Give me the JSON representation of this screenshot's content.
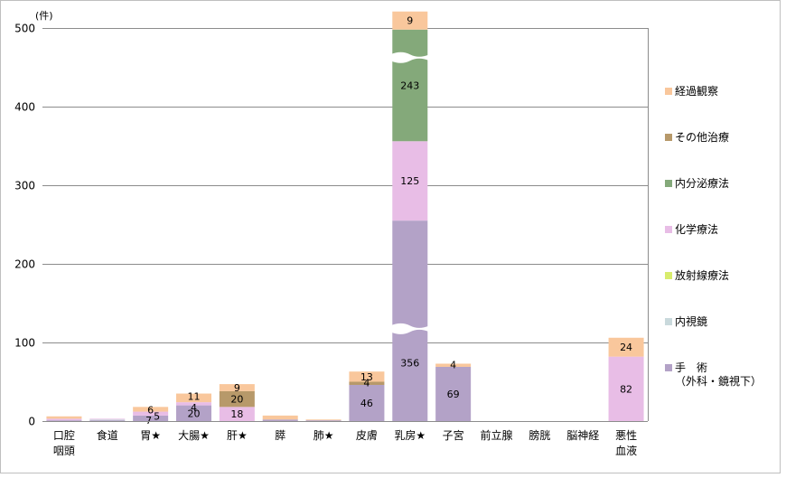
{
  "chart_data": {
    "type": "bar",
    "stacked": true,
    "y_unit_label": "(件)",
    "ylim": [
      0,
      500
    ],
    "y_ticks": [
      0,
      100,
      200,
      300,
      400,
      500
    ],
    "grid": true,
    "legend_position": "right",
    "axis_break": "乳房★ bar has two wavy breaks (inside 手術 and inside 内分泌療法)",
    "categories": [
      "口腔\n咽頭",
      "食道",
      "胃★",
      "大腸★",
      "肝★",
      "膵",
      "肺★",
      "皮膚",
      "乳房★",
      "子宮",
      "前立腺",
      "膀胱",
      "脳神経",
      "悪性\n血液"
    ],
    "series": [
      {
        "name": "手　術\n（外科・鏡視下）",
        "color": "#b3a2c7",
        "values": [
          1,
          1,
          7,
          20,
          0,
          2,
          1,
          46,
          356,
          69,
          0,
          0,
          0,
          0
        ]
      },
      {
        "name": "内視鏡",
        "color": "#c9d9dc",
        "values": [
          0,
          1,
          0,
          0,
          0,
          0,
          0,
          0,
          0,
          0,
          0,
          0,
          0,
          0
        ]
      },
      {
        "name": "放射線療法",
        "color": "#d8ec6d",
        "values": [
          0,
          0,
          0,
          0,
          0,
          0,
          0,
          0,
          0,
          0,
          0,
          0,
          0,
          0
        ]
      },
      {
        "name": "化学療法",
        "color": "#e8bde6",
        "values": [
          2,
          1,
          5,
          4,
          18,
          0,
          0,
          0,
          125,
          0,
          0,
          0,
          0,
          82
        ]
      },
      {
        "name": "内分泌療法",
        "color": "#84a97a",
        "values": [
          0,
          0,
          0,
          0,
          0,
          0,
          0,
          0,
          243,
          0,
          0,
          0,
          0,
          0
        ]
      },
      {
        "name": "その他治療",
        "color": "#b7996a",
        "values": [
          0,
          0,
          0,
          0,
          20,
          0,
          0,
          4,
          0,
          0,
          0,
          0,
          0,
          0
        ]
      },
      {
        "name": "経過観察",
        "color": "#f9c79c",
        "values": [
          3,
          0,
          6,
          11,
          9,
          5,
          1,
          13,
          9,
          4,
          0,
          0,
          0,
          24
        ]
      }
    ],
    "data_labels": [
      {
        "category": "胃★",
        "series": "手　術\n（外科・鏡視下）",
        "text": "7"
      },
      {
        "category": "胃★",
        "series": "化学療法",
        "text": "5"
      },
      {
        "category": "胃★",
        "series": "経過観察",
        "text": "6"
      },
      {
        "category": "大腸★",
        "series": "手　術\n（外科・鏡視下）",
        "text": "20"
      },
      {
        "category": "大腸★",
        "series": "化学療法",
        "text": "4"
      },
      {
        "category": "大腸★",
        "series": "経過観察",
        "text": "11"
      },
      {
        "category": "肝★",
        "series": "化学療法",
        "text": "18"
      },
      {
        "category": "肝★",
        "series": "その他治療",
        "text": "20"
      },
      {
        "category": "肝★",
        "series": "経過観察",
        "text": "9"
      },
      {
        "category": "皮膚",
        "series": "手　術\n（外科・鏡視下）",
        "text": "46"
      },
      {
        "category": "皮膚",
        "series": "その他治療",
        "text": "4"
      },
      {
        "category": "皮膚",
        "series": "経過観察",
        "text": "13"
      },
      {
        "category": "乳房★",
        "series": "手　術\n（外科・鏡視下）",
        "text": "356"
      },
      {
        "category": "乳房★",
        "series": "化学療法",
        "text": "125"
      },
      {
        "category": "乳房★",
        "series": "内分泌療法",
        "text": "243"
      },
      {
        "category": "乳房★",
        "series": "経過観察",
        "text": "9"
      },
      {
        "category": "子宮",
        "series": "手　術\n（外科・鏡視下）",
        "text": "69"
      },
      {
        "category": "子宮",
        "series": "経過観察",
        "text": "4"
      },
      {
        "category": "悪性\n血液",
        "series": "化学療法",
        "text": "82"
      },
      {
        "category": "悪性\n血液",
        "series": "経過観察",
        "text": "24"
      }
    ]
  }
}
